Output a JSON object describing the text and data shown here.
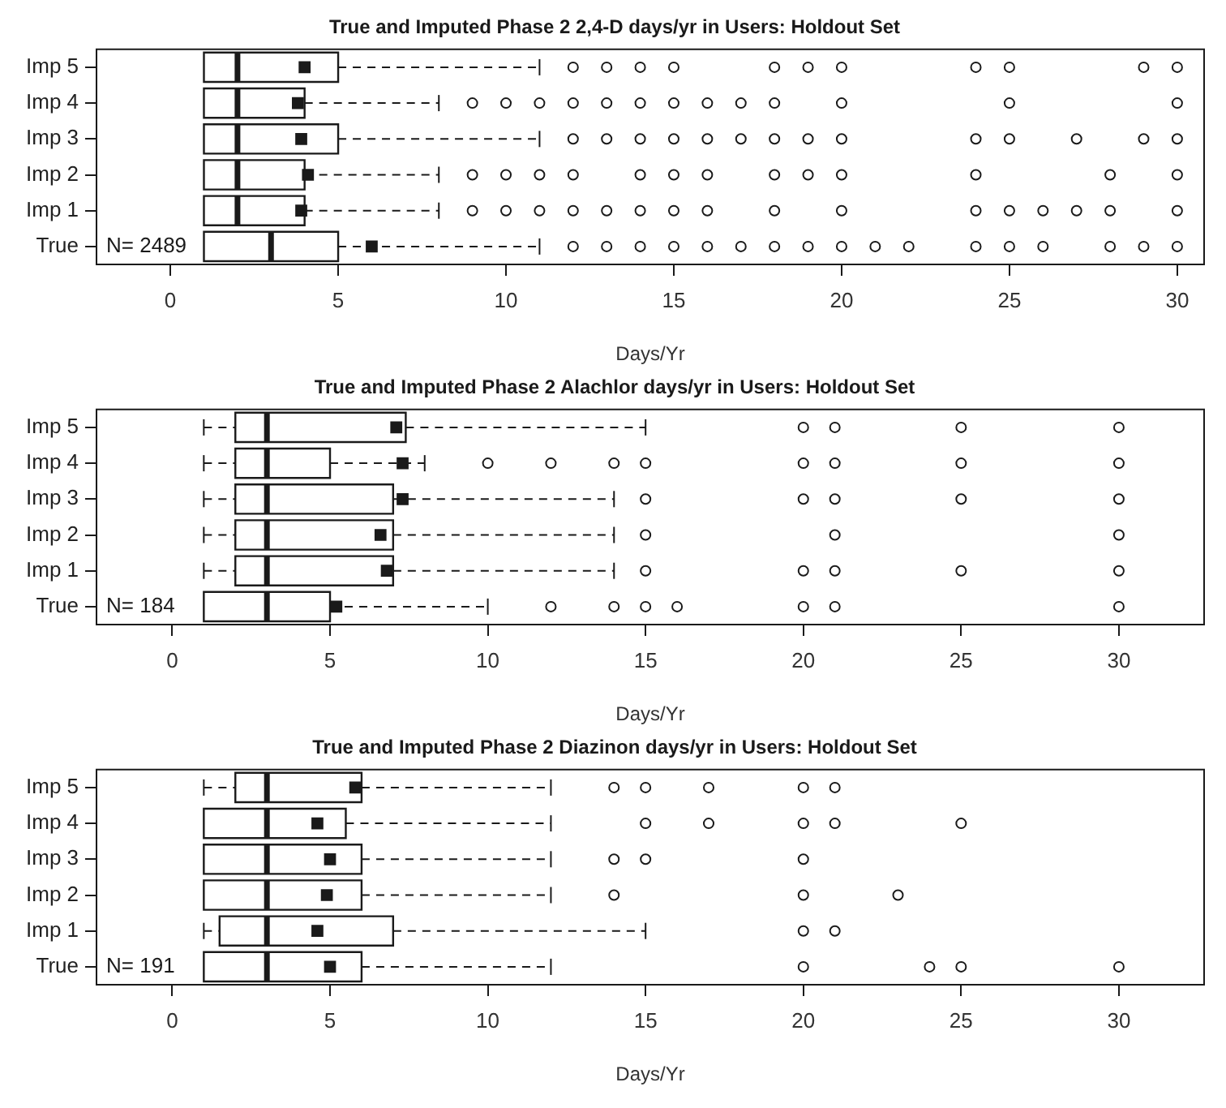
{
  "chart_data": [
    {
      "type": "box",
      "orientation": "horizontal",
      "title": "True and Imputed Phase 2 2,4-D days/yr in Users: Holdout Set",
      "xlabel": "Days/Yr",
      "categories": [
        "Imp 5",
        "Imp 4",
        "Imp 3",
        "Imp 2",
        "Imp 1",
        "True"
      ],
      "xlim": [
        -2.2,
        30.8
      ],
      "xticks": [
        0,
        5,
        10,
        15,
        20,
        25,
        30
      ],
      "annotations": [
        "N= 2489"
      ],
      "boxes": [
        {
          "low": 1,
          "q1": 1,
          "median": 2,
          "q3": 5,
          "high": 11,
          "mean": 4,
          "outliers": [
            12,
            13,
            14,
            15,
            18,
            19,
            20,
            24,
            25,
            29,
            30
          ]
        },
        {
          "low": 1,
          "q1": 1,
          "median": 2,
          "q3": 4,
          "high": 8,
          "mean": 3.8,
          "outliers": [
            9,
            10,
            11,
            12,
            13,
            14,
            15,
            16,
            17,
            18,
            20,
            25,
            30
          ]
        },
        {
          "low": 1,
          "q1": 1,
          "median": 2,
          "q3": 5,
          "high": 11,
          "mean": 3.9,
          "outliers": [
            12,
            13,
            14,
            15,
            16,
            17,
            18,
            19,
            20,
            24,
            25,
            27,
            29,
            30
          ]
        },
        {
          "low": 1,
          "q1": 1,
          "median": 2,
          "q3": 4,
          "high": 8,
          "mean": 4.1,
          "outliers": [
            9,
            10,
            11,
            12,
            14,
            15,
            16,
            18,
            19,
            20,
            24,
            28,
            30
          ]
        },
        {
          "low": 1,
          "q1": 1,
          "median": 2,
          "q3": 4,
          "high": 8,
          "mean": 3.9,
          "outliers": [
            9,
            10,
            11,
            12,
            13,
            14,
            15,
            16,
            18,
            20,
            24,
            25,
            26,
            27,
            28,
            30
          ]
        },
        {
          "low": 1,
          "q1": 1,
          "median": 3,
          "q3": 5,
          "high": 11,
          "mean": 6,
          "outliers": [
            12,
            13,
            14,
            15,
            16,
            17,
            18,
            19,
            20,
            21,
            22,
            24,
            25,
            26,
            28,
            29,
            30
          ]
        }
      ]
    },
    {
      "type": "box",
      "orientation": "horizontal",
      "title": "True and Imputed Phase 2 Alachlor days/yr in Users: Holdout Set",
      "xlabel": "Days/Yr",
      "categories": [
        "Imp 5",
        "Imp 4",
        "Imp 3",
        "Imp 2",
        "Imp 1",
        "True"
      ],
      "xlim": [
        -2.4,
        32.7
      ],
      "xticks": [
        0,
        5,
        10,
        15,
        20,
        25,
        30
      ],
      "annotations": [
        "N= 184"
      ],
      "boxes": [
        {
          "low": 1,
          "q1": 2,
          "median": 3,
          "q3": 7.4,
          "high": 15,
          "mean": 7.1,
          "outliers": [
            20,
            21,
            25,
            30
          ]
        },
        {
          "low": 1,
          "q1": 2,
          "median": 3,
          "q3": 5,
          "high": 8,
          "mean": 7.3,
          "outliers": [
            10,
            12,
            14,
            15,
            20,
            21,
            25,
            30
          ]
        },
        {
          "low": 1,
          "q1": 2,
          "median": 3,
          "q3": 7,
          "high": 14,
          "mean": 7.3,
          "outliers": [
            15,
            20,
            21,
            25,
            30
          ]
        },
        {
          "low": 1,
          "q1": 2,
          "median": 3,
          "q3": 7,
          "high": 14,
          "mean": 6.6,
          "outliers": [
            15,
            21,
            30
          ]
        },
        {
          "low": 1,
          "q1": 2,
          "median": 3,
          "q3": 7,
          "high": 14,
          "mean": 6.8,
          "outliers": [
            15,
            20,
            21,
            25,
            30
          ]
        },
        {
          "low": 1,
          "q1": 1,
          "median": 3,
          "q3": 5,
          "high": 10,
          "mean": 5.2,
          "outliers": [
            12,
            14,
            15,
            16,
            20,
            21,
            30
          ]
        }
      ]
    },
    {
      "type": "box",
      "orientation": "horizontal",
      "title": "True and Imputed Phase 2 Diazinon days/yr in Users: Holdout Set",
      "xlabel": "Days/Yr",
      "categories": [
        "Imp 5",
        "Imp 4",
        "Imp 3",
        "Imp 2",
        "Imp 1",
        "True"
      ],
      "xlim": [
        -2.4,
        32.7
      ],
      "xticks": [
        0,
        5,
        10,
        15,
        20,
        25,
        30
      ],
      "annotations": [
        "N= 191"
      ],
      "boxes": [
        {
          "low": 1,
          "q1": 2,
          "median": 3,
          "q3": 6,
          "high": 12,
          "mean": 5.8,
          "outliers": [
            14,
            15,
            17,
            20,
            21
          ]
        },
        {
          "low": 1,
          "q1": 1,
          "median": 3,
          "q3": 5.5,
          "high": 12,
          "mean": 4.6,
          "outliers": [
            15,
            17,
            20,
            21,
            25
          ]
        },
        {
          "low": 1,
          "q1": 1,
          "median": 3,
          "q3": 6,
          "high": 12,
          "mean": 5,
          "outliers": [
            14,
            15,
            20
          ]
        },
        {
          "low": 1,
          "q1": 1,
          "median": 3,
          "q3": 6,
          "high": 12,
          "mean": 4.9,
          "outliers": [
            14,
            20,
            23
          ]
        },
        {
          "low": 1,
          "q1": 1.5,
          "median": 3,
          "q3": 7,
          "high": 15,
          "mean": 4.6,
          "outliers": [
            20,
            21
          ]
        },
        {
          "low": 1,
          "q1": 1,
          "median": 3,
          "q3": 6,
          "high": 12,
          "mean": 5,
          "outliers": [
            20,
            24,
            25,
            30
          ]
        }
      ]
    }
  ]
}
